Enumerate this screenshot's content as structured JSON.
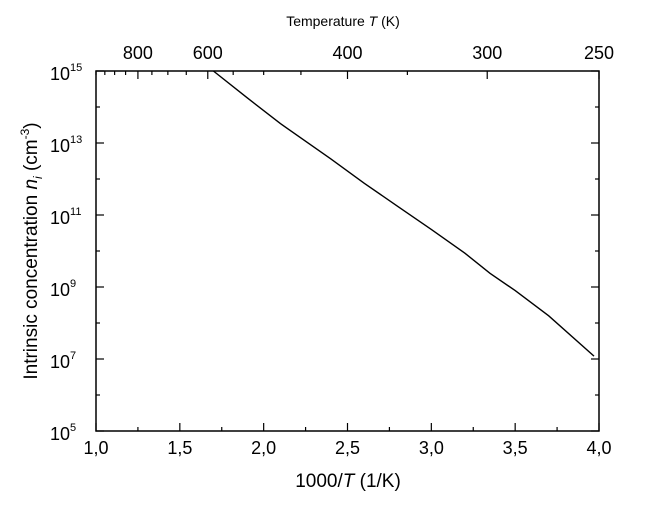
{
  "chart_data": {
    "type": "line",
    "title": "",
    "xlabel": "1000/T (1/K)",
    "xlabel_parts": {
      "pre": "1000/",
      "italic": "T",
      "post": " (1/K)"
    },
    "ylabel": "Intrinsic concentration n_i (cm^-3)",
    "ylabel_parts": {
      "pre": "Intrinsic concentration ",
      "italic": "n",
      "sub": "i",
      "mid": " (cm",
      "sup": "-3",
      "post": ")"
    },
    "top_xlabel": "Temperature T (K)",
    "top_xlabel_parts": {
      "pre": "Temperature ",
      "italic": "T",
      "post": " (K)"
    },
    "xlim": [
      1.0,
      4.0
    ],
    "ylim_log10": [
      5,
      15
    ],
    "yscale": "log",
    "grid": false,
    "legend": null,
    "x_ticks": [
      {
        "value": 1.0,
        "label": "1,0"
      },
      {
        "value": 1.5,
        "label": "1,5"
      },
      {
        "value": 2.0,
        "label": "2,0"
      },
      {
        "value": 2.5,
        "label": "2,5"
      },
      {
        "value": 3.0,
        "label": "3,0"
      },
      {
        "value": 3.5,
        "label": "3,5"
      },
      {
        "value": 4.0,
        "label": "4,0"
      }
    ],
    "x_minor_ticks": [
      1.25,
      1.75,
      2.25,
      2.75,
      3.25,
      3.75
    ],
    "y_ticks": [
      {
        "exp": 5,
        "label": "10",
        "sup": "5"
      },
      {
        "exp": 7,
        "label": "10",
        "sup": "7"
      },
      {
        "exp": 9,
        "label": "10",
        "sup": "9"
      },
      {
        "exp": 11,
        "label": "10",
        "sup": "11"
      },
      {
        "exp": 13,
        "label": "10",
        "sup": "13"
      },
      {
        "exp": 15,
        "label": "10",
        "sup": "15"
      }
    ],
    "y_minor_ticks": [
      6,
      8,
      10,
      12,
      14
    ],
    "top_ticks": [
      {
        "T": 800,
        "label": "800"
      },
      {
        "T": 600,
        "label": "600"
      },
      {
        "T": 400,
        "label": "400"
      },
      {
        "T": 300,
        "label": "300"
      },
      {
        "T": 250,
        "label": "250"
      }
    ],
    "top_minor_ticks_T": [
      1000,
      950,
      900,
      850,
      750,
      700,
      650,
      550,
      500,
      450,
      350
    ],
    "series": [
      {
        "name": "n_i",
        "color": "#000000",
        "x": [
          1.7,
          1.9,
          2.1,
          2.4,
          2.6,
          2.8,
          3.0,
          3.2,
          3.35,
          3.5,
          3.7,
          3.97
        ],
        "log10_y": [
          15.0,
          14.26,
          13.54,
          12.56,
          11.88,
          11.24,
          10.6,
          9.94,
          9.38,
          8.9,
          8.2,
          7.08
        ]
      }
    ]
  }
}
